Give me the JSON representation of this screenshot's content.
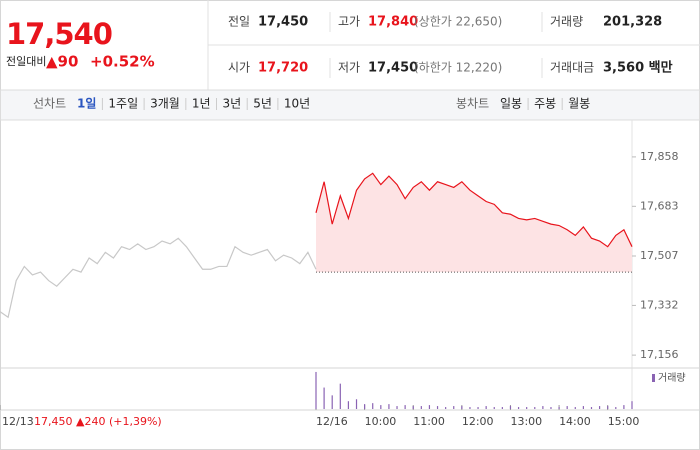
{
  "header": {
    "price": "17,540",
    "change_label": "전일대비",
    "change": "▲90",
    "change_pct": "+0.52%"
  },
  "info": [
    [
      {
        "label": "전일",
        "value": "17,450",
        "color": "#222222"
      },
      {
        "label": "고가",
        "value": "17,840",
        "note": "(상한가 22,650)",
        "color": "#e8141c"
      },
      {
        "label": "거래량",
        "value": "201,328",
        "color": "#222222"
      }
    ],
    [
      {
        "label": "시가",
        "value": "17,720",
        "color": "#e8141c"
      },
      {
        "label": "저가",
        "value": "17,450",
        "note": "(하한가 12,220)",
        "color": "#222222"
      },
      {
        "label": "거래대금",
        "value": "3,560 백만",
        "color": "#222222"
      }
    ]
  ],
  "tabs": {
    "line_label": "선차트",
    "line_periods": [
      "1일",
      "1주일",
      "3개월",
      "1년",
      "3년",
      "5년",
      "10년"
    ],
    "active": 0,
    "candle_label": "봉차트",
    "candle_periods": [
      "일봉",
      "주봉",
      "월봉"
    ]
  },
  "chart_data": {
    "type": "line",
    "xlim": [
      -390,
      390
    ],
    "xticks": [
      {
        "value": -390,
        "label": "12/13"
      },
      {
        "value": 0,
        "label": "12/16"
      },
      {
        "value": 60,
        "label": "10:00"
      },
      {
        "value": 120,
        "label": "11:00"
      },
      {
        "value": 180,
        "label": "12:00"
      },
      {
        "value": 240,
        "label": "13:00"
      },
      {
        "value": 300,
        "label": "14:00"
      },
      {
        "value": 360,
        "label": "15:00"
      }
    ],
    "ylim": [
      17121,
      17971
    ],
    "yticks": [
      {
        "value": 17858,
        "label": "17,858"
      },
      {
        "value": 17683,
        "label": "17,683"
      },
      {
        "value": 17507,
        "label": "17,507"
      },
      {
        "value": 17332,
        "label": "17,332"
      },
      {
        "value": 17156,
        "label": "17,156"
      }
    ],
    "baseline": 17450,
    "prev_day_label": "17,450 ▲240 (+1,39%)",
    "series": [
      {
        "color": "#c8c8c8",
        "x": [
          -390,
          -380,
          -370,
          -360,
          -350,
          -340,
          -330,
          -320,
          -310,
          -300,
          -290,
          -280,
          -270,
          -260,
          -250,
          -240,
          -230,
          -220,
          -210,
          -200,
          -190,
          -180,
          -170,
          -160,
          -150,
          -140,
          -130,
          -120,
          -110,
          -100,
          -90,
          -80,
          -70,
          -60,
          -50,
          -40,
          -30,
          -20,
          -10,
          0
        ],
        "values": [
          17310,
          17290,
          17420,
          17470,
          17440,
          17450,
          17420,
          17400,
          17430,
          17460,
          17450,
          17500,
          17480,
          17520,
          17500,
          17540,
          17530,
          17550,
          17530,
          17540,
          17560,
          17550,
          17570,
          17540,
          17500,
          17460,
          17460,
          17470,
          17470,
          17540,
          17520,
          17510,
          17520,
          17530,
          17490,
          17510,
          17500,
          17480,
          17520,
          17460
        ]
      },
      {
        "color": "#e8141c",
        "fill": "#fde3e4",
        "x": [
          0,
          10,
          20,
          30,
          40,
          50,
          60,
          70,
          80,
          90,
          100,
          110,
          120,
          130,
          140,
          150,
          160,
          170,
          180,
          190,
          200,
          210,
          220,
          230,
          240,
          250,
          260,
          270,
          280,
          290,
          300,
          310,
          320,
          330,
          340,
          350,
          360,
          370,
          380,
          390
        ],
        "values": [
          17660,
          17770,
          17620,
          17720,
          17640,
          17740,
          17780,
          17800,
          17760,
          17790,
          17760,
          17710,
          17750,
          17770,
          17740,
          17770,
          17760,
          17750,
          17770,
          17740,
          17720,
          17700,
          17690,
          17660,
          17655,
          17640,
          17635,
          17640,
          17630,
          17620,
          17615,
          17600,
          17580,
          17610,
          17570,
          17560,
          17540,
          17580,
          17600,
          17540
        ]
      }
    ],
    "volume": {
      "name": "거래량",
      "color": "#8a63b3",
      "vlim": [
        0,
        40
      ],
      "x": [
        0,
        10,
        20,
        30,
        40,
        50,
        60,
        70,
        80,
        90,
        100,
        110,
        120,
        130,
        140,
        150,
        160,
        170,
        180,
        190,
        200,
        210,
        220,
        230,
        240,
        250,
        260,
        270,
        280,
        290,
        300,
        310,
        320,
        330,
        340,
        350,
        360,
        370,
        380,
        390
      ],
      "values": [
        38,
        22,
        14,
        26,
        8,
        10,
        5,
        6,
        4,
        5,
        3,
        4,
        3,
        3,
        4,
        3,
        2,
        3,
        3,
        2,
        2,
        3,
        2,
        2,
        3,
        2,
        2,
        2,
        3,
        2,
        2,
        3,
        2,
        3,
        2,
        3,
        3,
        2,
        4,
        8
      ]
    }
  }
}
